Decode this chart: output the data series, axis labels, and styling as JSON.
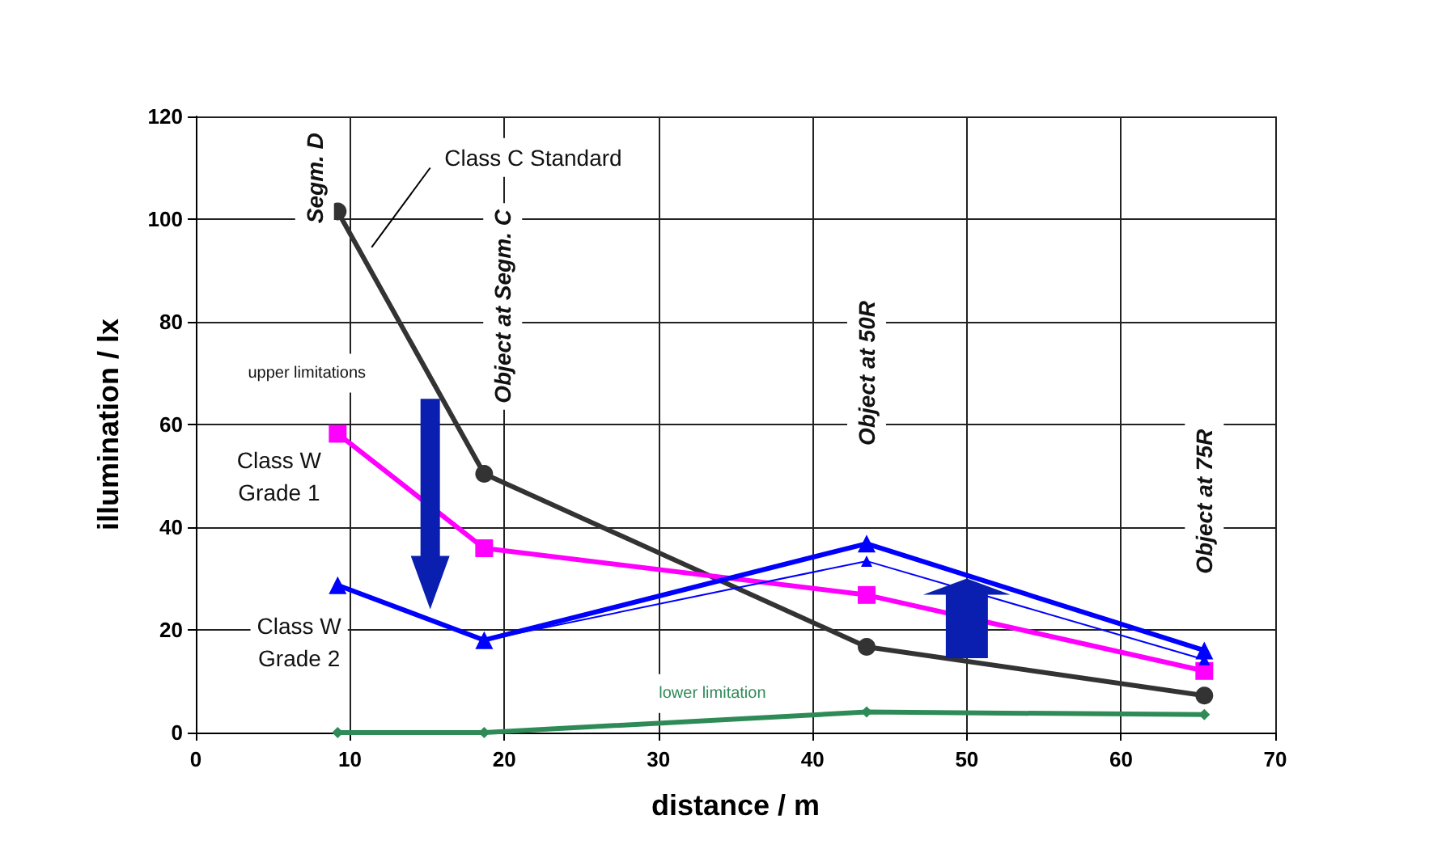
{
  "chart_data": {
    "type": "line",
    "xlabel": "distance / m",
    "ylabel": "illumination / lx",
    "x": [
      9.2,
      18.7,
      43.5,
      65.4
    ],
    "xlim": [
      0,
      70
    ],
    "xticks": [
      0,
      10,
      20,
      30,
      40,
      50,
      60,
      70
    ],
    "ylim": [
      0,
      120
    ],
    "yticks": [
      0,
      20,
      40,
      60,
      80,
      100,
      120
    ],
    "grid": true,
    "line_style": "solid",
    "series": [
      {
        "color": "#333333",
        "marker": "circle",
        "values": [
          101.5,
          50.4,
          16.7,
          7.2
        ]
      },
      {
        "color": "#ff00ff",
        "marker": "square",
        "values": [
          58.2,
          35.9,
          26.8,
          12
        ]
      },
      {
        "color": "#0000ff",
        "marker": "triangle",
        "values": [
          28.7,
          18,
          36.8,
          16
        ]
      },
      {
        "color": "#0000ff",
        "marker": "triangle",
        "values": [
          null,
          18,
          33.4,
          14.2
        ]
      },
      {
        "color": "#2e8b57",
        "marker": "diamond",
        "values": [
          0,
          0,
          4,
          3.5
        ]
      }
    ],
    "annotations": [
      "Segm. D",
      "Object at Segm. C",
      "Object at 50R",
      "Object at 75R",
      "Class C Standard",
      "upper limitations",
      "Class W\nGrade 1",
      "Class W\nGrade 2",
      "lower limitation"
    ]
  }
}
